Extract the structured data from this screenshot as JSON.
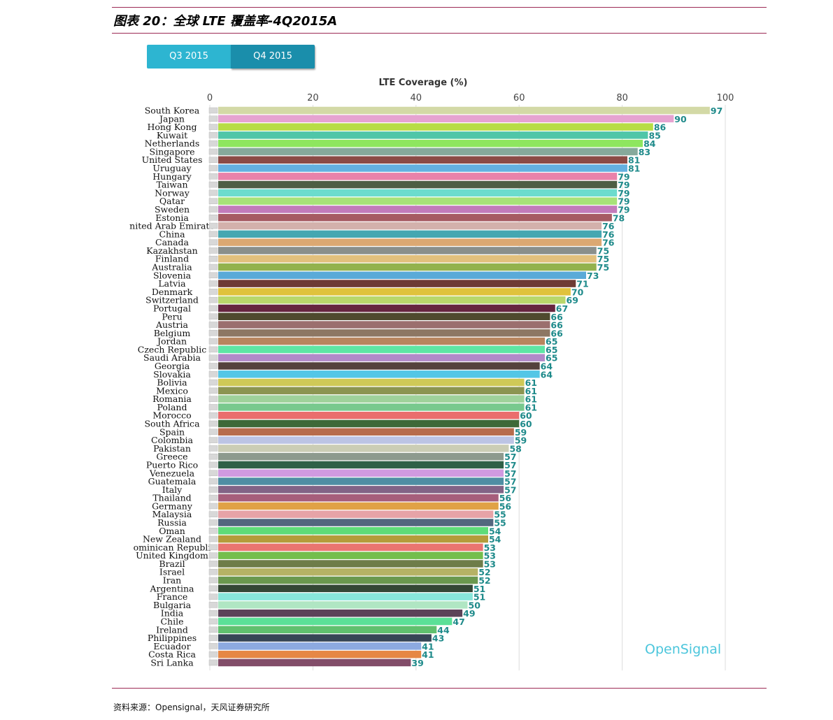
{
  "figure": {
    "title": "图表 20：全球 LTE 覆盖率-4Q2015A",
    "source": "资料来源：Opensignal，天风证券研究所",
    "brand": "OpenSignal"
  },
  "tabs": [
    {
      "label": "Q3 2015",
      "active": false
    },
    {
      "label": "Q4 2015",
      "active": true
    }
  ],
  "chart_data": {
    "type": "bar",
    "orientation": "horizontal",
    "title": "LTE Coverage (%)",
    "xlim": [
      0,
      100
    ],
    "ticks": [
      0,
      20,
      40,
      60,
      80,
      100
    ],
    "categories": [
      "South Korea",
      "Japan",
      "Hong Kong",
      "Kuwait",
      "Netherlands",
      "Singapore",
      "United States",
      "Uruguay",
      "Hungary",
      "Taiwan",
      "Norway",
      "Qatar",
      "Sweden",
      "Estonia",
      "nited Arab Emirate",
      "China",
      "Canada",
      "Kazakhstan",
      "Finland",
      "Australia",
      "Slovenia",
      "Latvia",
      "Denmark",
      "Switzerland",
      "Portugal",
      "Peru",
      "Austria",
      "Belgium",
      "Jordan",
      "Czech Republic",
      "Saudi Arabia",
      "Georgia",
      "Slovakia",
      "Bolivia",
      "Mexico",
      "Romania",
      "Poland",
      "Morocco",
      "South Africa",
      "Spain",
      "Colombia",
      "Pakistan",
      "Greece",
      "Puerto Rico",
      "Venezuela",
      "Guatemala",
      "Italy",
      "Thailand",
      "Germany",
      "Malaysia",
      "Russia",
      "Oman",
      "New Zealand",
      "ominican Republi",
      "United Kingdom",
      "Brazil",
      "Israel",
      "Iran",
      "Argentina",
      "France",
      "Bulgaria",
      "India",
      "Chile",
      "Ireland",
      "Philippines",
      "Ecuador",
      "Costa Rica",
      "Sri Lanka"
    ],
    "values": [
      97,
      90,
      86,
      85,
      84,
      83,
      81,
      81,
      79,
      79,
      79,
      79,
      79,
      78,
      76,
      76,
      76,
      75,
      75,
      75,
      73,
      71,
      70,
      69,
      67,
      66,
      66,
      66,
      65,
      65,
      65,
      64,
      64,
      61,
      61,
      61,
      61,
      60,
      60,
      59,
      59,
      58,
      57,
      57,
      57,
      57,
      57,
      56,
      56,
      55,
      55,
      54,
      54,
      53,
      53,
      53,
      52,
      52,
      51,
      51,
      50,
      49,
      47,
      44,
      43,
      41,
      41,
      39
    ],
    "bar_colors": [
      "#d3d9a6",
      "#e6a3d1",
      "#b7dd45",
      "#4fc6a8",
      "#8ee65f",
      "#86a99b",
      "#8b4b46",
      "#64b0e0",
      "#e982aa",
      "#4e5e44",
      "#6cdccd",
      "#a7e278",
      "#c27bba",
      "#a65a62",
      "#d3b1ac",
      "#45a7b1",
      "#dba872",
      "#8a8f8b",
      "#e2c07d",
      "#93b24d",
      "#5aaad8",
      "#6e3b35",
      "#e0c23c",
      "#b9d76b",
      "#66253f",
      "#4f4a2e",
      "#9b6f6e",
      "#8d7763",
      "#b8855e",
      "#5ee6a4",
      "#b28ac9",
      "#54413c",
      "#53c6e6",
      "#cfc957",
      "#8c9551",
      "#9fd29b",
      "#78c98e",
      "#ea6d6d",
      "#3d6938",
      "#b76c4c",
      "#bcc4e4",
      "#cbcdb5",
      "#8d9a8e",
      "#2f6047",
      "#d09ae0",
      "#4f8ea3",
      "#826486",
      "#a65e7b",
      "#e0a246",
      "#e6a3a7",
      "#53677e",
      "#5edc78",
      "#b49c3b",
      "#ea7570",
      "#73be4c",
      "#6e7c49",
      "#b5b265",
      "#6a984e",
      "#344735",
      "#88e6da",
      "#b0e6c3",
      "#5c4359",
      "#5be097",
      "#60c06e",
      "#374555",
      "#8daae0",
      "#e68745",
      "#824d69"
    ],
    "label_color": "#1e8a8a",
    "grid": true,
    "gridline_color": "#dcdcdc"
  }
}
